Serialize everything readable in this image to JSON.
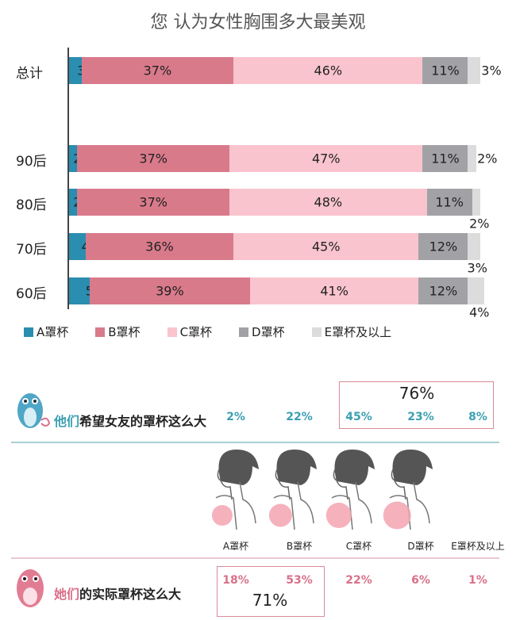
{
  "chart_data": {
    "type": "bar",
    "orientation": "horizontal",
    "stacked": true,
    "title": "您 认为女性胸围多大最美观",
    "categories": [
      "总计",
      "90后",
      "80后",
      "70后",
      "60后"
    ],
    "series": [
      {
        "name": "A罩杯",
        "color": "#2b8db0",
        "values": [
          3,
          2,
          2,
          4,
          5
        ]
      },
      {
        "name": "B罩杯",
        "color": "#d97a8b",
        "values": [
          37,
          37,
          37,
          36,
          39
        ]
      },
      {
        "name": "C罩杯",
        "color": "#f9c4cd",
        "values": [
          46,
          47,
          48,
          45,
          41
        ]
      },
      {
        "name": "D罩杯",
        "color": "#a2a2a6",
        "values": [
          11,
          11,
          11,
          12,
          12
        ]
      },
      {
        "name": "E罩杯及以上",
        "color": "#dcdcdc",
        "values": [
          3,
          2,
          2,
          3,
          4
        ]
      }
    ],
    "legend": "bottom",
    "grid": false
  },
  "comparison": {
    "cups": [
      "A罩杯",
      "B罩杯",
      "C罩杯",
      "D罩杯",
      "E罩杯及以上"
    ],
    "male": {
      "highlight": "他们",
      "label": "希望女友的罩杯这么大",
      "values": [
        "2%",
        "22%",
        "45%",
        "23%",
        "8%"
      ],
      "box_total": "76%",
      "color": "#3a9fb0"
    },
    "female": {
      "highlight": "她们",
      "label": "的实际罩杯这么大",
      "values": [
        "18%",
        "53%",
        "22%",
        "6%",
        "1%"
      ],
      "box_total": "71%",
      "color": "#d9708a"
    }
  }
}
